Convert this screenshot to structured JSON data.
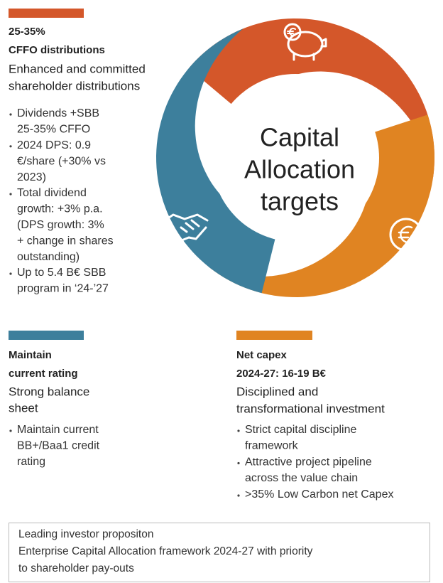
{
  "top_left": {
    "heading": [
      "25-35%",
      "CFFO distributions"
    ],
    "subtitle": [
      "Enhanced and committed",
      "shareholder distributions"
    ],
    "bullets": [
      [
        "Dividends +SBB",
        "25-35% CFFO"
      ],
      [
        "2024 DPS: 0.9",
        "€/share (+30% vs",
        "2023)"
      ],
      [
        "Total dividend",
        "growth: +3% p.a.",
        "(DPS growth: 3%",
        "+ change in shares",
        "outstanding)"
      ],
      [
        "Up to 5.4 B€ SBB",
        "program in ‘24-’27"
      ]
    ]
  },
  "diagram": {
    "title": [
      "Capital",
      "Allocation",
      "targets"
    ]
  },
  "bottom_left": {
    "heading": [
      "Maintain",
      "current rating"
    ],
    "subtitle": [
      "Strong balance",
      "sheet"
    ],
    "bullets": [
      [
        "Maintain current",
        "BB+/Baa1 credit",
        "rating"
      ]
    ]
  },
  "bottom_right": {
    "heading": [
      "Net capex",
      "2024-27: 16-19 B€"
    ],
    "subtitle": [
      "Disciplined and",
      "transformational investment"
    ],
    "bullets": [
      [
        "Strict capital discipline",
        "framework"
      ],
      [
        "Attractive project pipeline",
        "across the value chain"
      ],
      [
        ">35% Low Carbon net Capex"
      ]
    ]
  },
  "footer": {
    "lines": [
      "Leading investor propositon",
      "Enterprise Capital Allocation framework 2024-27 with priority",
      "to shareholder pay-outs"
    ]
  }
}
